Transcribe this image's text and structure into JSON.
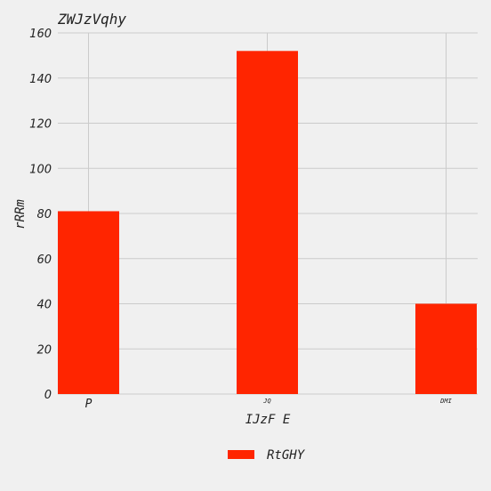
{
  "chart_data": {
    "type": "bar",
    "title": "ZWJzVqhy",
    "xlabel": "IJzF E",
    "ylabel": "rRRm",
    "categories": [
      "P",
      "JQ",
      "DMI"
    ],
    "series": [
      {
        "name": "RtGHY",
        "color": "#ff2500",
        "values": [
          81,
          152,
          40
        ]
      }
    ],
    "ylim": [
      0,
      160
    ],
    "yticks": [
      0,
      20,
      40,
      60,
      80,
      100,
      120,
      140,
      160
    ],
    "grid": true,
    "legend_position": "bottom-center"
  }
}
